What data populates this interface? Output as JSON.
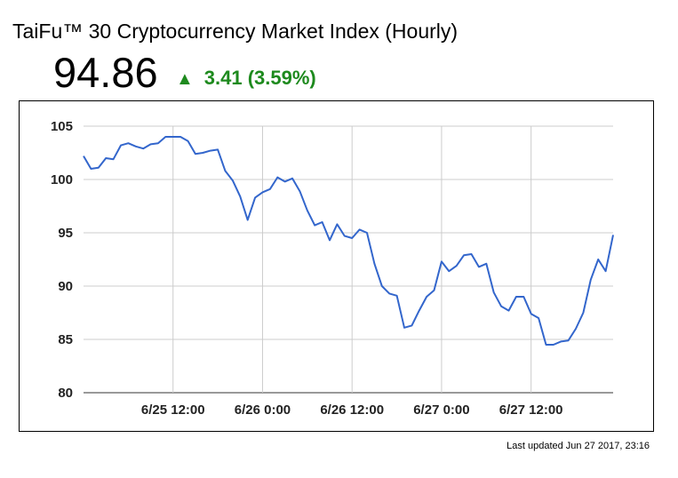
{
  "header": {
    "title": "TaiFu™ 30 Cryptocurrency Market Index (Hourly)",
    "price": "94.86",
    "change_arrow": "▲",
    "change_text": "3.41 (3.59%)",
    "up_color": "#1e8a1e"
  },
  "footer": {
    "last_updated": "Last updated Jun 27 2017, 23:16"
  },
  "chart_data": {
    "type": "line",
    "title": "",
    "xlabel": "",
    "ylabel": "",
    "ylim": [
      80,
      105
    ],
    "y_ticks": [
      80,
      85,
      90,
      95,
      100,
      105
    ],
    "x_ticks": [
      {
        "label": "6/25 12:00",
        "index": 12
      },
      {
        "label": "6/26 0:00",
        "index": 24
      },
      {
        "label": "6/26 12:00",
        "index": 36
      },
      {
        "label": "6/27 0:00",
        "index": 48
      },
      {
        "label": "6/27 12:00",
        "index": 60
      }
    ],
    "grid": true,
    "legend": "none",
    "line_color": "#3366cc",
    "series": [
      {
        "values": [
          102.2,
          101.0,
          101.1,
          102.0,
          101.9,
          103.2,
          103.4,
          103.1,
          102.9,
          103.3,
          103.4,
          104.0,
          104.0,
          104.0,
          103.6,
          102.4,
          102.5,
          102.7,
          102.8,
          100.8,
          99.9,
          98.4,
          96.2,
          98.3,
          98.8,
          99.1,
          100.2,
          99.8,
          100.1,
          98.9,
          97.1,
          95.7,
          96.0,
          94.3,
          95.8,
          94.7,
          94.5,
          95.3,
          95.0,
          92.1,
          90.0,
          89.3,
          89.1,
          86.1,
          86.3,
          87.7,
          89.0,
          89.6,
          92.3,
          91.4,
          91.9,
          92.9,
          93.0,
          91.8,
          92.1,
          89.4,
          88.1,
          87.7,
          89.0,
          89.0,
          87.4,
          87.0,
          84.5,
          84.5,
          84.8,
          84.9,
          86.0,
          87.5,
          90.6,
          92.5,
          91.4,
          94.8
        ]
      }
    ]
  }
}
